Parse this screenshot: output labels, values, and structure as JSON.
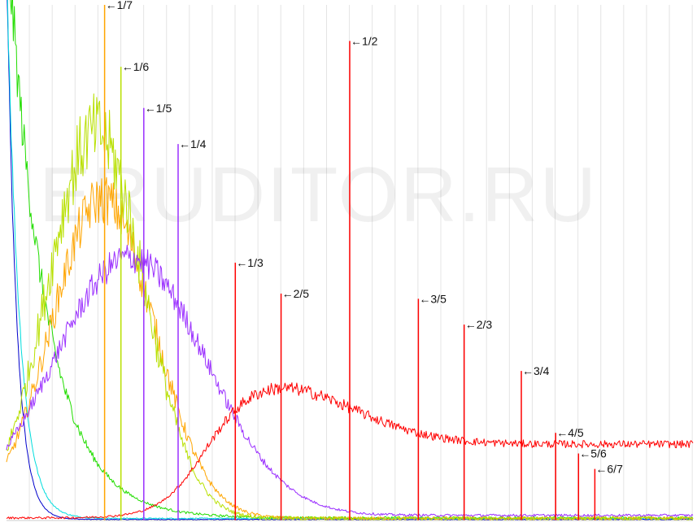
{
  "watermark": "ERUDITOR.RU",
  "chart_data": {
    "type": "line",
    "title": "",
    "xlabel": "",
    "ylabel": "",
    "xlim": [
      0,
      1
    ],
    "ylim": [
      0,
      1
    ],
    "grid": "vertical",
    "legend": "none",
    "x_grid_lines": 0.0333,
    "series": [
      {
        "color": "#0000cc",
        "shape": "decay",
        "amp": 1.1,
        "k": 70,
        "base": 0.002,
        "noise": 0.02
      },
      {
        "color": "#00dddd",
        "shape": "decay",
        "amp": 1.1,
        "k": 55,
        "base": 0.004,
        "noise": 0.03
      },
      {
        "color": "#22dd00",
        "shape": "decay",
        "amp": 1.15,
        "k": 18,
        "base": 0.005,
        "noise": 0.06
      },
      {
        "color": "#ffa500",
        "shape": "bump",
        "amp": 0.62,
        "mu": 0.14,
        "sigma": 0.075,
        "base": 0.004,
        "noise": 0.08
      },
      {
        "color": "#b8e000",
        "shape": "bump",
        "amp": 0.75,
        "mu": 0.13,
        "sigma": 0.07,
        "base": 0.004,
        "noise": 0.1
      },
      {
        "color": "#9b30ff",
        "shape": "bump",
        "amp": 0.5,
        "mu": 0.18,
        "sigma": 0.11,
        "base": 0.01,
        "noise": 0.06
      },
      {
        "color": "#ff0000",
        "shape": "plateau",
        "amp": 0.26,
        "mu": 0.38,
        "sigma": 0.12,
        "tail": 0.06,
        "base": 0.005,
        "noise": 0.05
      }
    ],
    "peaks": [
      {
        "label": "←1/7",
        "x": 0.1429,
        "y": 1.0,
        "color": "#ffa500"
      },
      {
        "label": "←1/6",
        "x": 0.1667,
        "y": 0.88,
        "color": "#b8e000"
      },
      {
        "label": "←1/5",
        "x": 0.2,
        "y": 0.8,
        "color": "#9b30ff"
      },
      {
        "label": "←1/4",
        "x": 0.25,
        "y": 0.73,
        "color": "#9b30ff"
      },
      {
        "label": "←1/3",
        "x": 0.3333,
        "y": 0.5,
        "color": "#ff0000"
      },
      {
        "label": "←2/5",
        "x": 0.4,
        "y": 0.44,
        "color": "#ff0000"
      },
      {
        "label": "←1/2",
        "x": 0.5,
        "y": 0.93,
        "color": "#ff0000"
      },
      {
        "label": "←3/5",
        "x": 0.6,
        "y": 0.43,
        "color": "#ff0000"
      },
      {
        "label": "←2/3",
        "x": 0.6667,
        "y": 0.38,
        "color": "#ff0000"
      },
      {
        "label": "←3/4",
        "x": 0.75,
        "y": 0.29,
        "color": "#ff0000"
      },
      {
        "label": "←4/5",
        "x": 0.8,
        "y": 0.17,
        "color": "#ff0000"
      },
      {
        "label": "←5/6",
        "x": 0.8333,
        "y": 0.13,
        "color": "#ff0000"
      },
      {
        "label": "←6/7",
        "x": 0.8571,
        "y": 0.1,
        "color": "#ff0000"
      }
    ]
  }
}
